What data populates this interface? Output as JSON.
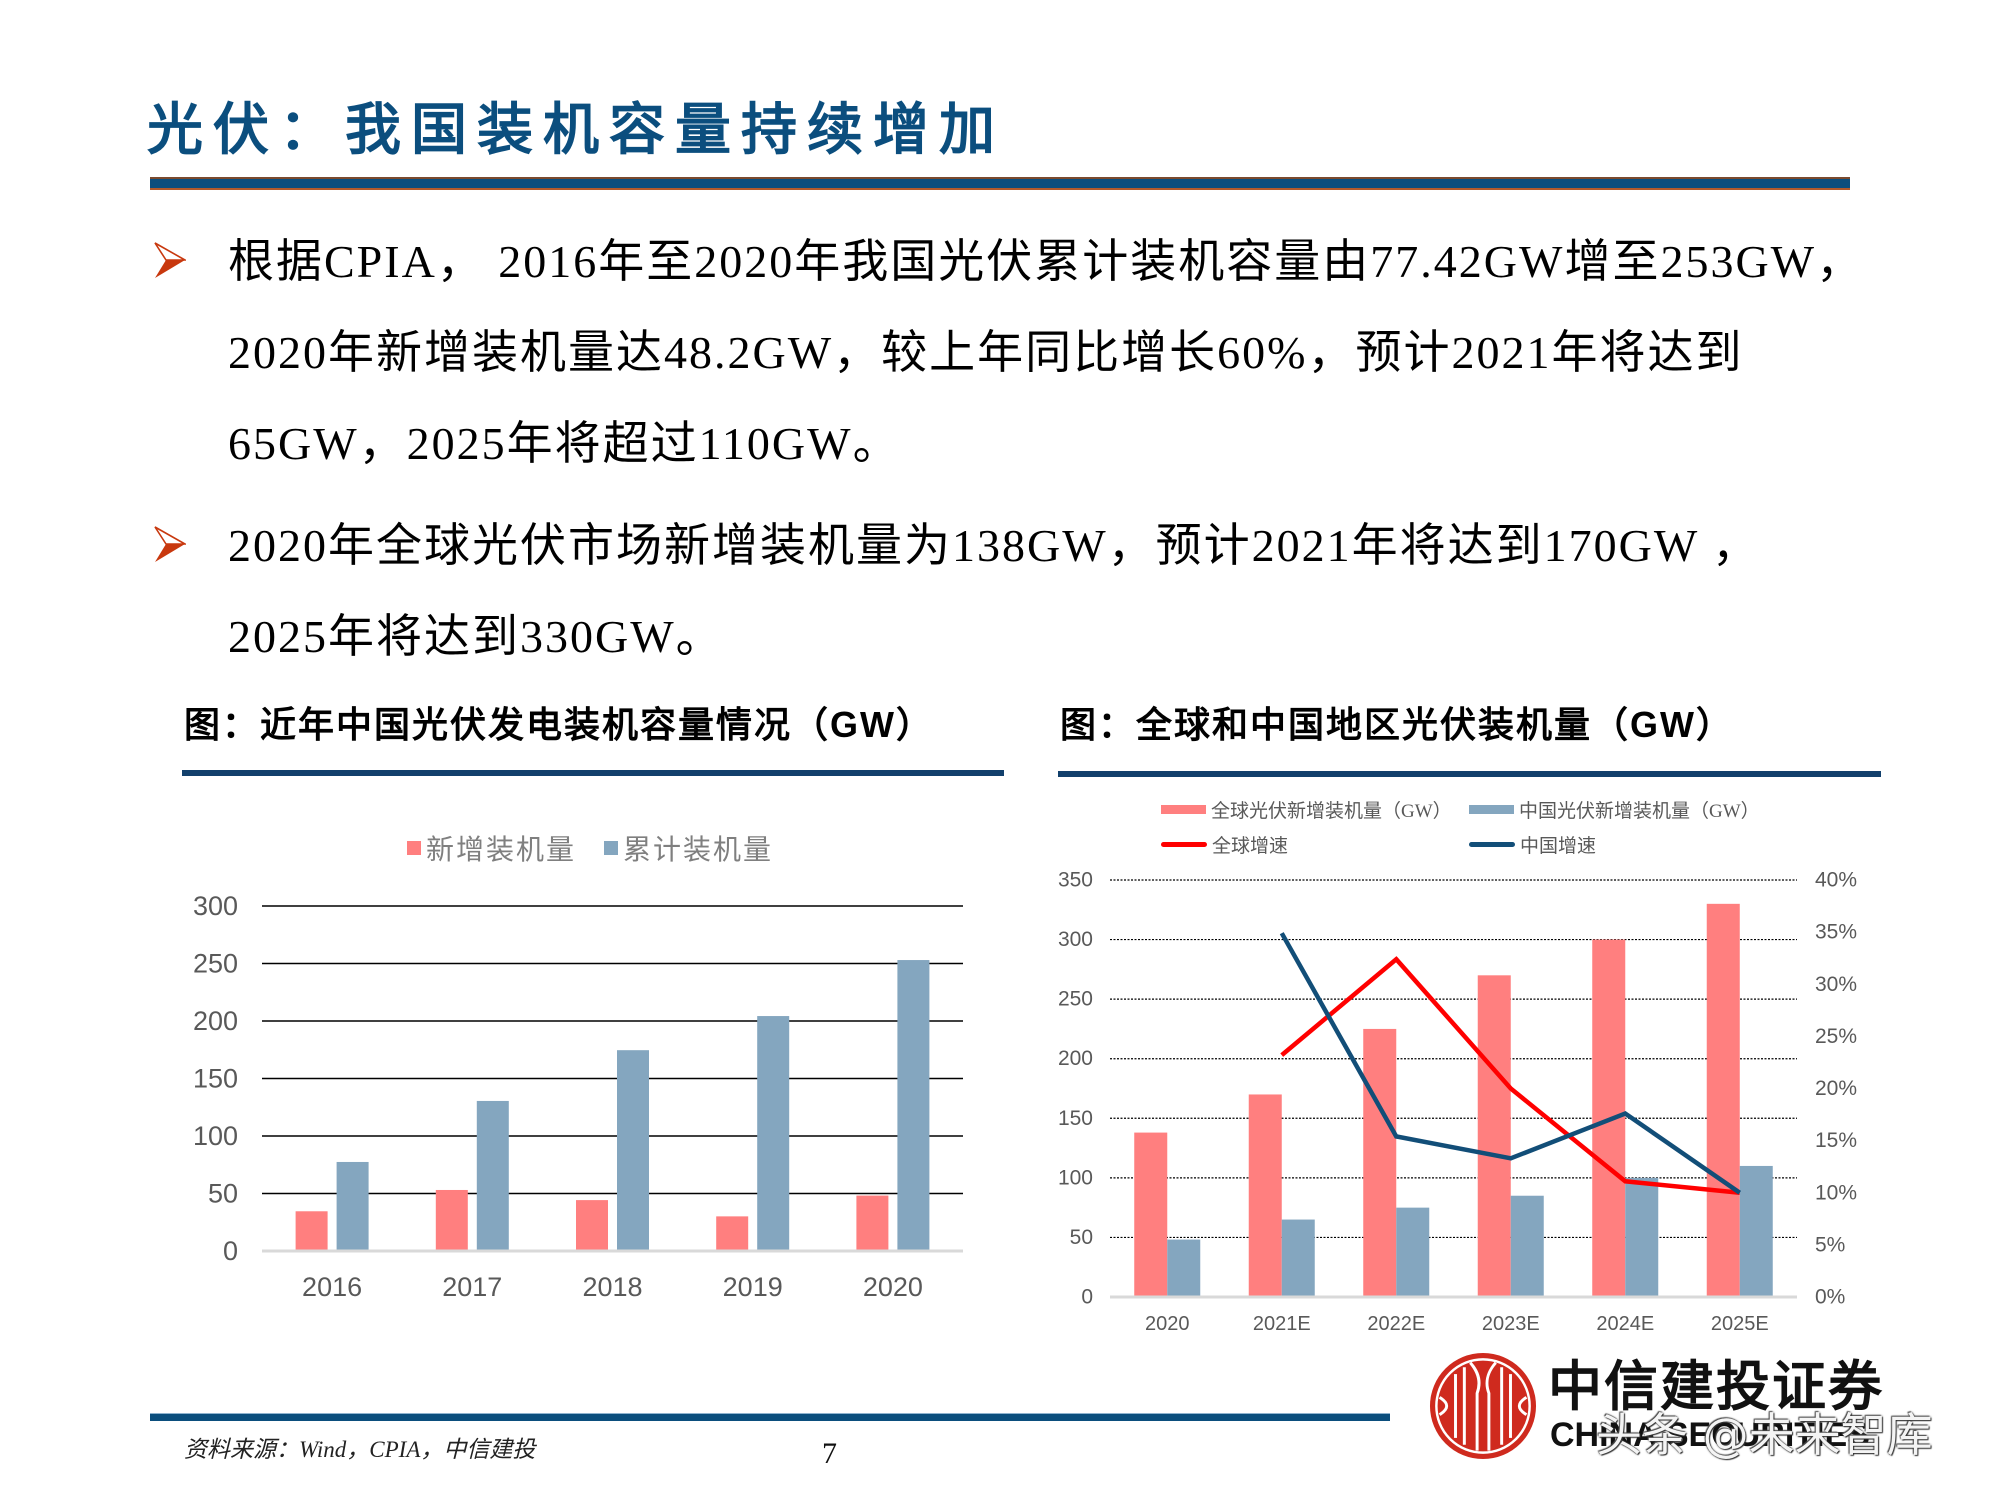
{
  "slide": {
    "title": "光伏：我国装机容量持续增加",
    "bullets": [
      {
        "lines": [
          "根据CPIA， 2016年至2020年我国光伏累计装机容量由77.42GW增至253GW，",
          "2020年新增装机量达48.2GW，较上年同比增长60%，预计2021年将达到",
          "65GW，2025年将超过110GW。"
        ]
      },
      {
        "lines": [
          "2020年全球光伏市场新增装机量为138GW，预计2021年将达到170GW ，",
          "2025年将达到330GW。"
        ]
      }
    ],
    "footer": {
      "source": "资料来源：Wind，CPIA，中信建投",
      "page_number": "7"
    },
    "logo": {
      "icon": "citic-logo-icon",
      "name_cn": "中信建投证券",
      "name_en": "CHINA SECURITIES"
    },
    "watermark": "头条 @未来智库"
  },
  "colors": {
    "title": "#0b4e7e",
    "rule": "#0b4e7d",
    "bullet_marker": "#c8380e",
    "chart_rule": "#12406c",
    "logo_red": "#cf2a1e",
    "bar_red": "#FF7F7F",
    "bar_blue": "#84A6BF",
    "line_red": "#FF0000",
    "line_blue": "#124E78"
  },
  "chart_data": [
    {
      "type": "bar",
      "title": "图：近年中国光伏发电装机容量情况（GW）",
      "xlabel": "",
      "ylabel": "",
      "categories": [
        "2016",
        "2017",
        "2018",
        "2019",
        "2020"
      ],
      "series": [
        {
          "name": "新增装机量",
          "type": "bar",
          "color": "#FF7F7F",
          "values": [
            34.54,
            53.06,
            44.26,
            30.11,
            48.2
          ]
        },
        {
          "name": "累计装机量",
          "type": "bar",
          "color": "#84A6BF",
          "values": [
            77.42,
            130.48,
            174.63,
            204.3,
            253
          ]
        }
      ],
      "yticks": [
        0,
        50,
        100,
        150,
        200,
        250,
        300
      ],
      "ylim": [
        0,
        300
      ],
      "grid": true,
      "legend_position": "top"
    },
    {
      "type": "bar",
      "title": "图：全球和中国地区光伏装机量（GW）",
      "xlabel": "",
      "ylabel": "",
      "categories": [
        "2020",
        "2021E",
        "2022E",
        "2023E",
        "2024E",
        "2025E"
      ],
      "series": [
        {
          "name": "全球光伏新增装机量（GW）",
          "type": "bar",
          "axis": "left",
          "color": "#FF7F7F",
          "values": [
            138,
            170,
            225,
            270,
            300,
            330
          ]
        },
        {
          "name": "中国光伏新增装机量（GW）",
          "type": "bar",
          "axis": "left",
          "color": "#84A6BF",
          "values": [
            48.2,
            65,
            75,
            85,
            100,
            110
          ]
        },
        {
          "name": "全球增速",
          "type": "line",
          "axis": "right",
          "color": "#FF0000",
          "values": [
            null,
            23.2,
            32.4,
            20.0,
            11.1,
            10.0
          ]
        },
        {
          "name": "中国增速",
          "type": "line",
          "axis": "right",
          "color": "#124E78",
          "values": [
            null,
            34.9,
            15.4,
            13.3,
            17.6,
            10.0
          ]
        }
      ],
      "yticks_left": [
        0,
        50,
        100,
        150,
        200,
        250,
        300,
        350
      ],
      "ylim_left": [
        0,
        350
      ],
      "yticks_right": [
        "0%",
        "5%",
        "10%",
        "15%",
        "20%",
        "25%",
        "30%",
        "35%",
        "40%"
      ],
      "ylim_right": [
        0,
        40
      ],
      "grid": true,
      "legend_position": "top"
    }
  ]
}
